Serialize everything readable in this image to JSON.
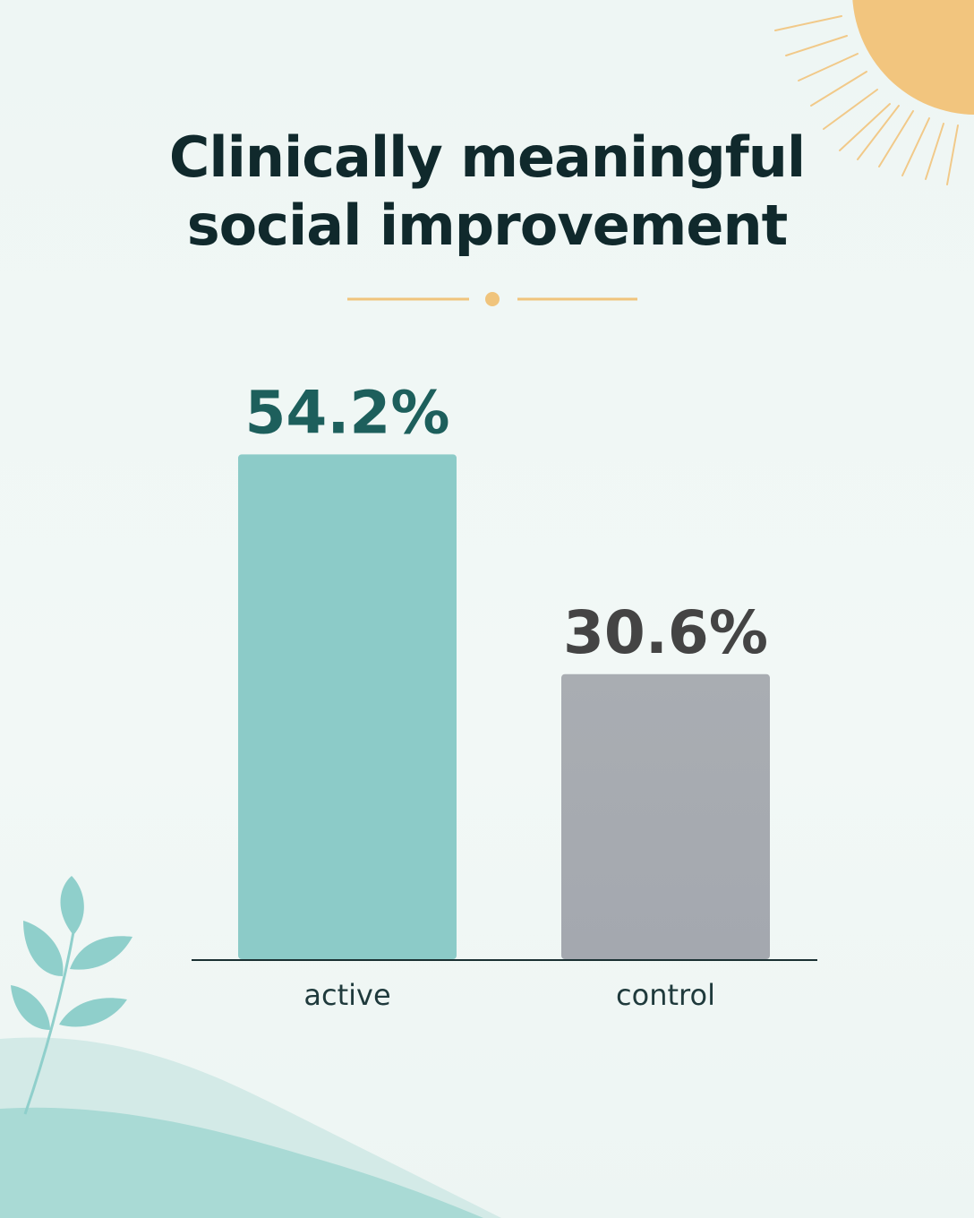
{
  "title_lines": [
    "Clinically meaningful",
    "social improvement"
  ],
  "colors": {
    "background": "#eef6f4",
    "title": "#10292c",
    "accent_gold": "#f0c47c",
    "active_bar": "#8ccbc8",
    "active_label": "#1d5f5c",
    "control_bar_top": "#a9adb2",
    "control_bar_bottom": "#a4a8af",
    "control_label": "#444444",
    "axis": "#1a3032",
    "category_label": "#1f3a3c",
    "leaf": "#8fcfcb",
    "hill_light": "#cfe8e5",
    "hill_dark": "#a6d8d3"
  },
  "chart_data": {
    "type": "bar",
    "title": "Clinically meaningful social improvement",
    "categories": [
      "active",
      "control"
    ],
    "values": [
      54.2,
      30.6
    ],
    "value_labels": [
      "54.2%",
      "30.6%"
    ],
    "xlabel": "",
    "ylabel": "",
    "ylim": [
      0,
      100
    ],
    "grid": false,
    "legend": "none"
  }
}
